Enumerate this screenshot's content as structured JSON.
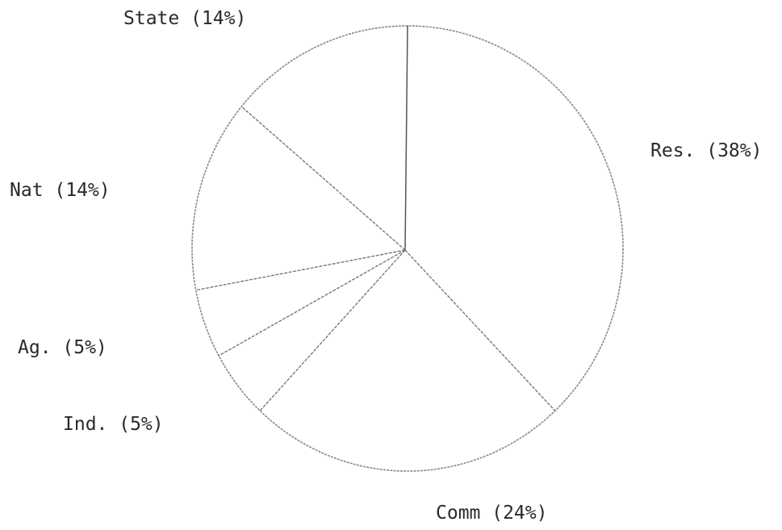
{
  "chart_data": {
    "type": "pie",
    "title": "",
    "start": "12 o'clock",
    "direction": "clockwise",
    "outline_color": "#8a8a8a",
    "text_color": "#2a2a2a",
    "slices": [
      {
        "name": "Res.",
        "value": 38,
        "label": "Res. (38%)"
      },
      {
        "name": "Comm",
        "value": 24,
        "label": "Comm (24%)"
      },
      {
        "name": "Ind.",
        "value": 5,
        "label": "Ind. (5%)"
      },
      {
        "name": "Ag.",
        "value": 5,
        "label": "Ag. (5%)"
      },
      {
        "name": "Nat",
        "value": 14,
        "label": "Nat (14%)"
      },
      {
        "name": "State",
        "value": 14,
        "label": "State (14%)"
      }
    ]
  }
}
